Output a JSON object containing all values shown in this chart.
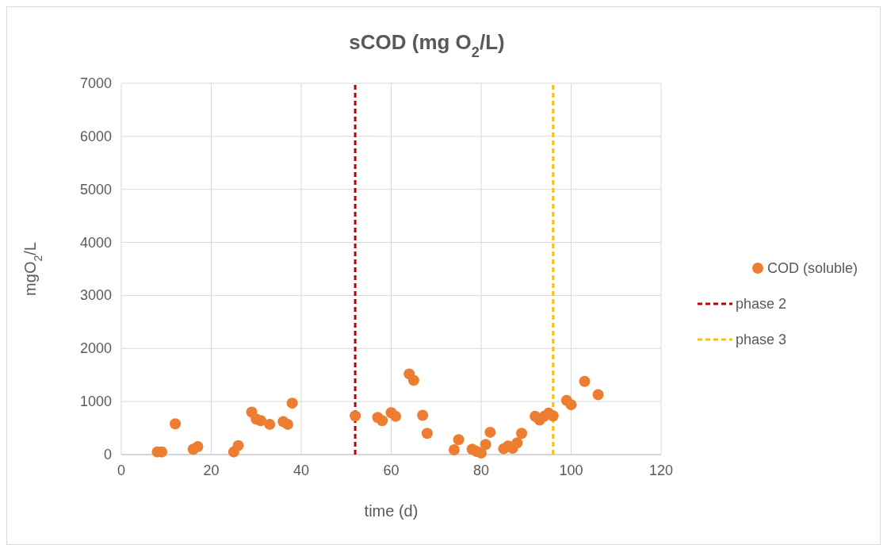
{
  "chart_data": {
    "type": "scatter",
    "title": "sCOD (mg O$_{2}$/L)",
    "xlabel": "time (d)",
    "ylabel": "mgO$_{2}$/L",
    "xlim": [
      0,
      120
    ],
    "xticks": [
      0,
      20,
      40,
      60,
      80,
      100,
      120
    ],
    "ylim": [
      0,
      7000
    ],
    "yticks": [
      0,
      1000,
      2000,
      3000,
      4000,
      5000,
      6000,
      7000
    ],
    "grid": true,
    "legend": "right",
    "line_style": "dashed",
    "series": [
      {
        "name": "COD (soluble)",
        "color": "#ed7d31",
        "marker": "circle",
        "x": [
          8,
          9,
          12,
          16,
          17,
          25,
          26,
          29,
          30,
          31,
          33,
          36,
          37,
          38,
          52,
          57,
          58,
          60,
          61,
          64,
          65,
          67,
          68,
          74,
          75,
          78,
          79,
          80,
          81,
          82,
          85,
          86,
          87,
          88,
          89,
          92,
          93,
          94,
          95,
          96,
          99,
          100,
          103,
          106
        ],
        "values": [
          50,
          50,
          580,
          100,
          150,
          50,
          170,
          800,
          670,
          640,
          570,
          620,
          570,
          970,
          730,
          700,
          640,
          790,
          720,
          1520,
          1400,
          740,
          400,
          90,
          280,
          100,
          60,
          30,
          190,
          420,
          110,
          160,
          120,
          220,
          400,
          720,
          650,
          720,
          780,
          730,
          1020,
          940,
          1380,
          1130
        ]
      },
      {
        "name": "phase 2",
        "type": "line",
        "color": "#c00000",
        "marker": "none",
        "x": [
          52,
          52
        ],
        "values": [
          0,
          7000
        ]
      },
      {
        "name": "phase 3",
        "type": "line",
        "color": "#ffc000",
        "marker": "none",
        "x": [
          96,
          96
        ],
        "values": [
          0,
          7000
        ]
      }
    ]
  }
}
